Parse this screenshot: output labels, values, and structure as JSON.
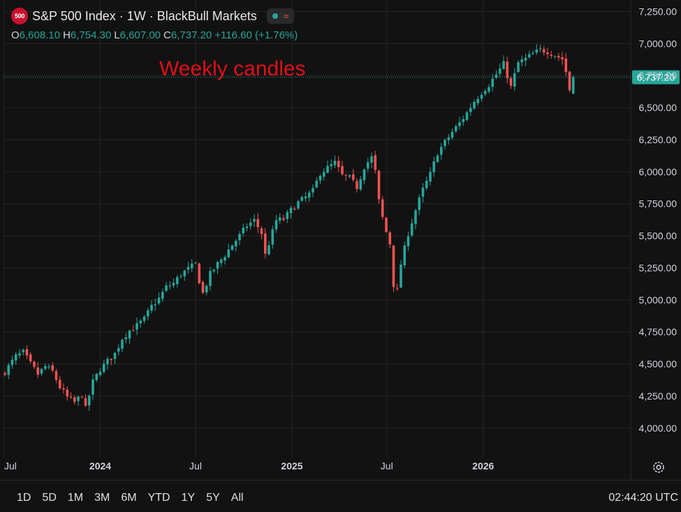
{
  "legend": {
    "logo_text": "500",
    "title": "S&P 500 Index · 1W · BlackBull Markets",
    "ohlc": {
      "o_label": "O",
      "o_value": "6,608.10",
      "h_label": "H",
      "h_value": "6,754.30",
      "l_label": "L",
      "l_value": "6,607.00",
      "c_label": "C",
      "c_value": "6,737.20",
      "change": "+116.60 (+1.76%)"
    }
  },
  "annotation": "Weekly candles",
  "price_label": "6,737.20",
  "range_buttons": [
    "1D",
    "5D",
    "1M",
    "3M",
    "6M",
    "YTD",
    "1Y",
    "5Y",
    "All"
  ],
  "clock": "02:44:20 UTC",
  "colors": {
    "up": "#26a69a",
    "down": "#ef5350",
    "background": "#121212",
    "grid": "#262626",
    "annotation": "#e0101a",
    "price_label_bg": "#26a69a"
  },
  "icons": [
    "gear-icon",
    "logo-icon",
    "market-status-icon",
    "wave-icon"
  ],
  "chart_data": {
    "type": "candlestick",
    "title": "S&P 500 Index · 1W · BlackBull Markets",
    "y_ticks": [
      7250,
      7000,
      6750,
      6500,
      6250,
      6000,
      5750,
      5500,
      5250,
      5000,
      4750,
      4500,
      4250,
      4000
    ],
    "y_tick_labels": [
      "7,250.00",
      "7,000.00",
      "6,750.00",
      "6,500.00",
      "6,250.00",
      "6,000.00",
      "5,750.00",
      "5,500.00",
      "5,250.00",
      "5,000.00",
      "4,750.00",
      "4,500.00",
      "4,250.00",
      "4,000.00"
    ],
    "ylim": [
      3770,
      7340
    ],
    "x_labels": [
      "Jul",
      "2024",
      "Jul",
      "2025",
      "Jul",
      "2026"
    ],
    "x_start": "2023-07-03",
    "grid": true,
    "last_close": 6737.2,
    "weekly_close_path": [
      [
        0,
        4440
      ],
      [
        3,
        4560
      ],
      [
        5,
        4590
      ],
      [
        7,
        4500
      ],
      [
        9,
        4420
      ],
      [
        11,
        4480
      ],
      [
        13,
        4440
      ],
      [
        15,
        4320
      ],
      [
        17,
        4240
      ],
      [
        19,
        4200
      ],
      [
        21,
        4260
      ],
      [
        22,
        4150
      ],
      [
        24,
        4360
      ],
      [
        26,
        4460
      ],
      [
        28,
        4520
      ],
      [
        30,
        4580
      ],
      [
        32,
        4700
      ],
      [
        34,
        4760
      ],
      [
        36,
        4800
      ],
      [
        38,
        4850
      ],
      [
        40,
        4950
      ],
      [
        42,
        5010
      ],
      [
        44,
        5100
      ],
      [
        46,
        5130
      ],
      [
        48,
        5200
      ],
      [
        50,
        5240
      ],
      [
        52,
        5280
      ],
      [
        53,
        5150
      ],
      [
        54,
        5050
      ],
      [
        56,
        5200
      ],
      [
        58,
        5280
      ],
      [
        60,
        5350
      ],
      [
        62,
        5430
      ],
      [
        64,
        5500
      ],
      [
        66,
        5580
      ],
      [
        68,
        5620
      ],
      [
        70,
        5520
      ],
      [
        71,
        5350
      ],
      [
        72,
        5440
      ],
      [
        74,
        5620
      ],
      [
        76,
        5630
      ],
      [
        78,
        5700
      ],
      [
        80,
        5760
      ],
      [
        82,
        5800
      ],
      [
        84,
        5850
      ],
      [
        86,
        5990
      ],
      [
        88,
        6030
      ],
      [
        90,
        6070
      ],
      [
        92,
        5970
      ],
      [
        94,
        5950
      ],
      [
        96,
        5880
      ],
      [
        98,
        6040
      ],
      [
        100,
        6110
      ],
      [
        101,
        6000
      ],
      [
        102,
        5770
      ],
      [
        103,
        5640
      ],
      [
        104,
        5530
      ],
      [
        105,
        5440
      ],
      [
        106,
        5120
      ],
      [
        107,
        5070
      ],
      [
        108,
        5280
      ],
      [
        110,
        5520
      ],
      [
        112,
        5700
      ],
      [
        114,
        5860
      ],
      [
        116,
        5980
      ],
      [
        118,
        6150
      ],
      [
        120,
        6230
      ],
      [
        122,
        6310
      ],
      [
        124,
        6380
      ],
      [
        126,
        6460
      ],
      [
        128,
        6550
      ],
      [
        130,
        6620
      ],
      [
        132,
        6680
      ],
      [
        134,
        6760
      ],
      [
        136,
        6840
      ],
      [
        138,
        6660
      ],
      [
        140,
        6850
      ],
      [
        142,
        6880
      ],
      [
        144,
        6920
      ],
      [
        146,
        6950
      ],
      [
        148,
        6940
      ],
      [
        150,
        6910
      ],
      [
        152,
        6880
      ],
      [
        153,
        6780
      ],
      [
        154,
        6640
      ],
      [
        155,
        6737.2
      ]
    ]
  }
}
